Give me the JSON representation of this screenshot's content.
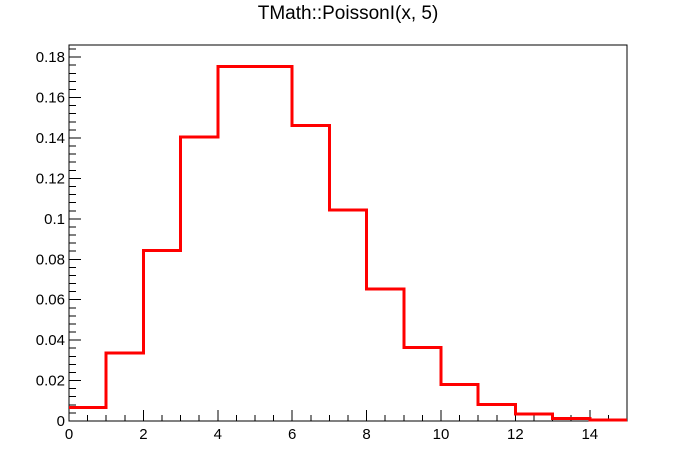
{
  "title": "TMath::PoissonI(x, 5)",
  "chart_data": {
    "type": "line",
    "subtype": "step-histogram",
    "title": "TMath::PoissonI(x, 5)",
    "xlabel": "",
    "ylabel": "",
    "x_bin_edges": [
      0,
      1,
      2,
      3,
      4,
      5,
      6,
      7,
      8,
      9,
      10,
      11,
      12,
      13,
      14,
      15
    ],
    "values": [
      0.0067379,
      0.0336897,
      0.0842243,
      0.1403739,
      0.1754674,
      0.1754674,
      0.1462228,
      0.1044449,
      0.065278,
      0.0362656,
      0.0181328,
      0.0082422,
      0.0034342,
      0.0013209,
      0.0004717
    ],
    "xlim": [
      0,
      15
    ],
    "ylim": [
      0,
      0.186
    ],
    "x_major_ticks": [
      0,
      2,
      4,
      6,
      8,
      10,
      12,
      14
    ],
    "x_tick_labels": [
      "0",
      "2",
      "4",
      "6",
      "8",
      "10",
      "12",
      "14"
    ],
    "x_minor_step": 0.5,
    "y_major_ticks": [
      0,
      0.02,
      0.04,
      0.06,
      0.08,
      0.1,
      0.12,
      0.14,
      0.16,
      0.18
    ],
    "y_tick_labels": [
      "0",
      "0.02",
      "0.04",
      "0.06",
      "0.08",
      "0.1",
      "0.12",
      "0.14",
      "0.16",
      "0.18"
    ],
    "y_minor_step": 0.004,
    "grid": false,
    "legend": false,
    "line_color": "#ff0000",
    "axis_color": "#000000",
    "background_color": "#ffffff"
  }
}
